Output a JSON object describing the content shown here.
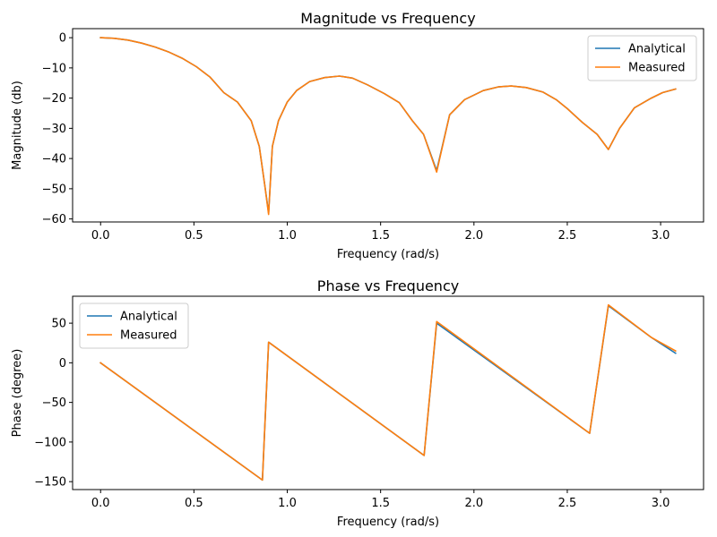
{
  "chart_data": [
    {
      "type": "line",
      "title": "Magnitude vs Frequency",
      "xlabel": "Frequency (rad/s)",
      "ylabel": "Magnitude (db)",
      "xlim": [
        -0.15,
        3.23
      ],
      "ylim": [
        -61,
        3
      ],
      "xticks": [
        0.0,
        0.5,
        1.0,
        1.5,
        2.0,
        2.5,
        3.0
      ],
      "xtick_labels": [
        "0.0",
        "0.5",
        "1.0",
        "1.5",
        "2.0",
        "2.5",
        "3.0"
      ],
      "yticks": [
        0,
        -10,
        -20,
        -30,
        -40,
        -50,
        -60
      ],
      "ytick_labels": [
        "0",
        "−10",
        "−20",
        "−30",
        "−40",
        "−50",
        "−60"
      ],
      "grid": false,
      "legend_position": "top-right",
      "colors": {
        "Analytical": "#1f77b4",
        "Measured": "#ff7f0e"
      },
      "series": [
        {
          "name": "Analytical",
          "x": [
            0.0,
            0.073,
            0.147,
            0.22,
            0.293,
            0.367,
            0.44,
            0.513,
            0.587,
            0.66,
            0.733,
            0.807,
            0.85,
            0.88,
            0.9,
            0.92,
            0.953,
            1.0,
            1.05,
            1.12,
            1.2,
            1.28,
            1.35,
            1.43,
            1.52,
            1.6,
            1.67,
            1.73,
            1.8,
            1.87,
            1.95,
            2.05,
            2.13,
            2.2,
            2.28,
            2.37,
            2.44,
            2.5,
            2.58,
            2.66,
            2.72,
            2.78,
            2.86,
            2.95,
            3.01,
            3.08
          ],
          "y": [
            0,
            -0.2,
            -0.8,
            -1.8,
            -3.1,
            -4.8,
            -6.9,
            -9.6,
            -13.1,
            -18.2,
            -21.3,
            -27.5,
            -36,
            -49,
            -58,
            -36,
            -27.5,
            -21.3,
            -17.5,
            -14.5,
            -13.2,
            -12.7,
            -13.4,
            -15.6,
            -18.5,
            -21.5,
            -27.5,
            -32,
            -44,
            -25.5,
            -20.5,
            -17.5,
            -16.3,
            -16.0,
            -16.5,
            -18.0,
            -20.5,
            -23.5,
            -28,
            -32,
            -37,
            -30,
            -23.2,
            -20,
            -18.2,
            -17.0
          ]
        },
        {
          "name": "Measured",
          "x": [
            0.0,
            0.073,
            0.147,
            0.22,
            0.293,
            0.367,
            0.44,
            0.513,
            0.587,
            0.66,
            0.733,
            0.807,
            0.85,
            0.88,
            0.9,
            0.92,
            0.953,
            1.0,
            1.05,
            1.12,
            1.2,
            1.28,
            1.35,
            1.43,
            1.52,
            1.6,
            1.67,
            1.73,
            1.8,
            1.87,
            1.95,
            2.05,
            2.13,
            2.2,
            2.28,
            2.37,
            2.44,
            2.5,
            2.58,
            2.66,
            2.72,
            2.78,
            2.86,
            2.95,
            3.01,
            3.08
          ],
          "y": [
            0,
            -0.2,
            -0.8,
            -1.8,
            -3.1,
            -4.8,
            -6.9,
            -9.6,
            -13.1,
            -18.2,
            -21.3,
            -27.5,
            -36,
            -49,
            -58.5,
            -36,
            -27.5,
            -21.3,
            -17.5,
            -14.5,
            -13.2,
            -12.7,
            -13.4,
            -15.6,
            -18.5,
            -21.5,
            -27.5,
            -32,
            -44.5,
            -25.5,
            -20.5,
            -17.5,
            -16.3,
            -16.0,
            -16.5,
            -18.0,
            -20.5,
            -23.5,
            -28,
            -32,
            -37,
            -30,
            -23.2,
            -20,
            -18.2,
            -17.0
          ]
        }
      ]
    },
    {
      "type": "line",
      "title": "Phase vs Frequency",
      "xlabel": "Frequency (rad/s)",
      "ylabel": "Phase (degree)",
      "xlim": [
        -0.15,
        3.23
      ],
      "ylim": [
        -160,
        84
      ],
      "xticks": [
        0.0,
        0.5,
        1.0,
        1.5,
        2.0,
        2.5,
        3.0
      ],
      "xtick_labels": [
        "0.0",
        "0.5",
        "1.0",
        "1.5",
        "2.0",
        "2.5",
        "3.0"
      ],
      "yticks": [
        50,
        0,
        -50,
        -100,
        -150
      ],
      "ytick_labels": [
        "50",
        "0",
        "−50",
        "−100",
        "−150"
      ],
      "grid": false,
      "legend_position": "top-left",
      "colors": {
        "Analytical": "#1f77b4",
        "Measured": "#ff7f0e"
      },
      "series": [
        {
          "name": "Analytical",
          "x": [
            0.0,
            0.867,
            0.9,
            1.733,
            1.8,
            2.62,
            2.72,
            2.95,
            3.08
          ],
          "y": [
            0,
            -148,
            26,
            -117,
            50,
            -89,
            72,
            32,
            12
          ]
        },
        {
          "name": "Measured",
          "x": [
            0.0,
            0.867,
            0.9,
            1.733,
            1.8,
            2.62,
            2.72,
            2.95,
            3.08
          ],
          "y": [
            0,
            -148,
            26,
            -117,
            52,
            -89,
            73,
            32,
            15
          ]
        }
      ]
    }
  ]
}
